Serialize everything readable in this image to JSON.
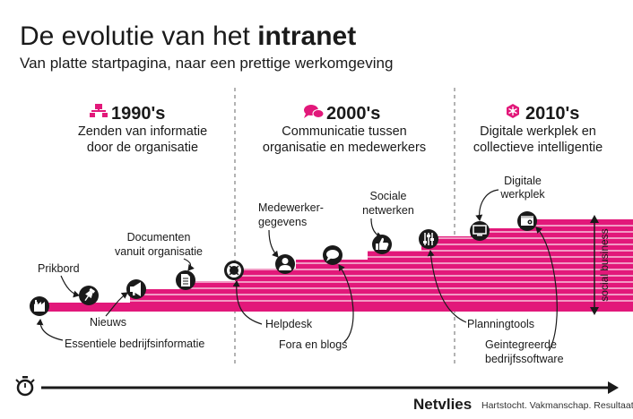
{
  "title": {
    "light": "De evolutie van het",
    "bold": "intranet"
  },
  "subtitle": "Van platte startpagina, naar een prettige werkomgeving",
  "eras": [
    {
      "year": "1990's",
      "icon": "sitemap-icon",
      "lines": [
        "Zenden van informatie",
        "door de organisatie"
      ]
    },
    {
      "year": "2000's",
      "icon": "chat-bubbles-icon",
      "lines": [
        "Communicatie tussen",
        "organisatie en medewerkers"
      ]
    },
    {
      "year": "2010's",
      "icon": "network-icon",
      "lines": [
        "Digitale werkplek en",
        "collectieve intelligentie"
      ]
    }
  ],
  "milestones": [
    {
      "icon": "factory-icon",
      "lines": [
        "Essentiele bedrijfsinformatie"
      ]
    },
    {
      "icon": "pushpin-icon",
      "lines": [
        "Prikbord"
      ]
    },
    {
      "icon": "megaphone-icon",
      "lines": [
        "Nieuws"
      ]
    },
    {
      "icon": "document-icon",
      "lines": [
        "Documenten",
        "vanuit organisatie"
      ]
    },
    {
      "icon": "lifebuoy-icon",
      "lines": [
        "Helpdesk"
      ]
    },
    {
      "icon": "user-icon",
      "lines": [
        "Medewerker-",
        "gegevens"
      ]
    },
    {
      "icon": "speech-bubble-icon",
      "lines": [
        "Fora en blogs"
      ]
    },
    {
      "icon": "thumbs-up-icon",
      "lines": [
        "Sociale",
        "netwerken"
      ]
    },
    {
      "icon": "equalizer-icon",
      "lines": [
        "Planningtools"
      ]
    },
    {
      "icon": "monitor-icon",
      "lines": [
        "Digitale",
        "werkplek"
      ]
    },
    {
      "icon": "software-window-icon",
      "lines": [
        "Geintegreerde",
        "bedrijfssoftware"
      ]
    }
  ],
  "bracket_label": "social business",
  "timeline_icon": "stopwatch-icon",
  "brand": {
    "name": "Netvlies",
    "tagline": "Hartstocht. Vakmanschap. Resultaat."
  },
  "colors": {
    "accent": "#e2187a",
    "ink": "#1a1a1a",
    "divider": "#9a9a9a"
  }
}
